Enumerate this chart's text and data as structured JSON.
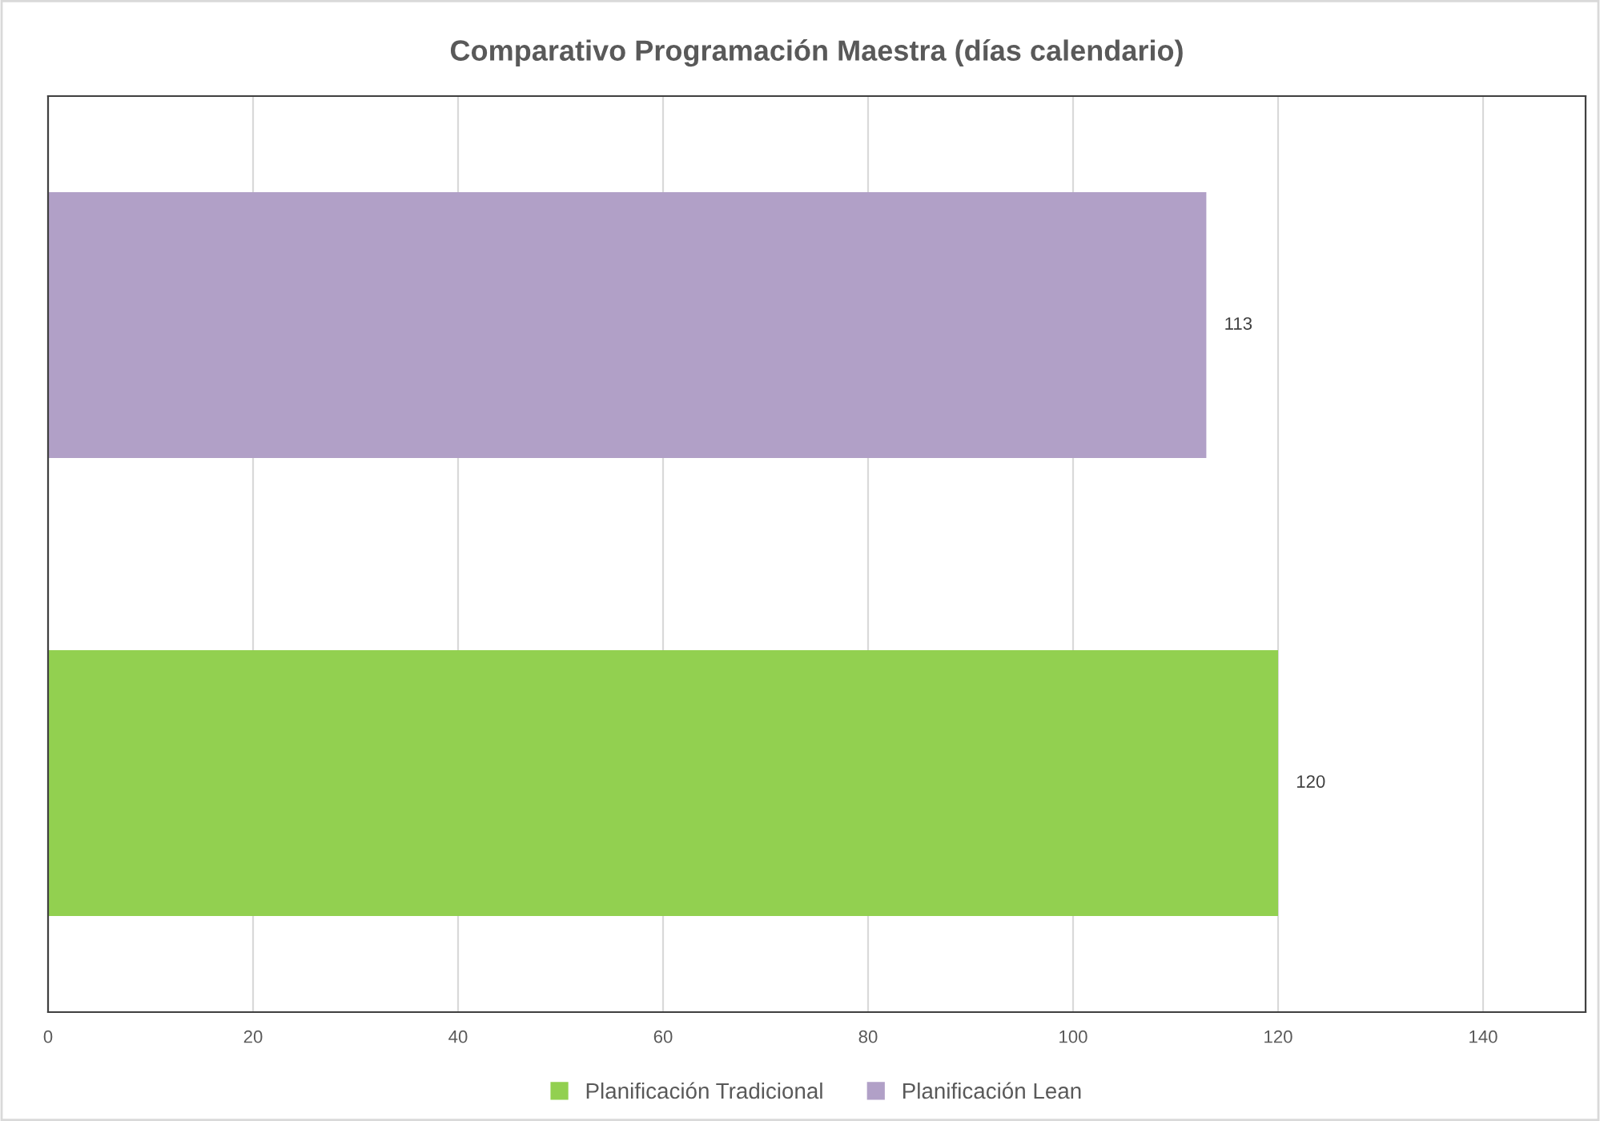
{
  "chart_data": {
    "type": "bar",
    "orientation": "horizontal",
    "stacked": true,
    "title": "Comparativo Programación Maestra (días calendario)",
    "categories": [
      null,
      null
    ],
    "series": [
      {
        "name": "Planificación Tradicional",
        "color": "#92d050",
        "values": [
          null,
          120
        ]
      },
      {
        "name": "Planificación Lean",
        "color": "#b1a0c7",
        "values": [
          113,
          null
        ]
      }
    ],
    "xlim": [
      0,
      150
    ],
    "xticks": [
      0,
      20,
      40,
      60,
      80,
      100,
      120,
      140
    ],
    "grid": "x",
    "legend": "bottom",
    "data_labels": true
  }
}
